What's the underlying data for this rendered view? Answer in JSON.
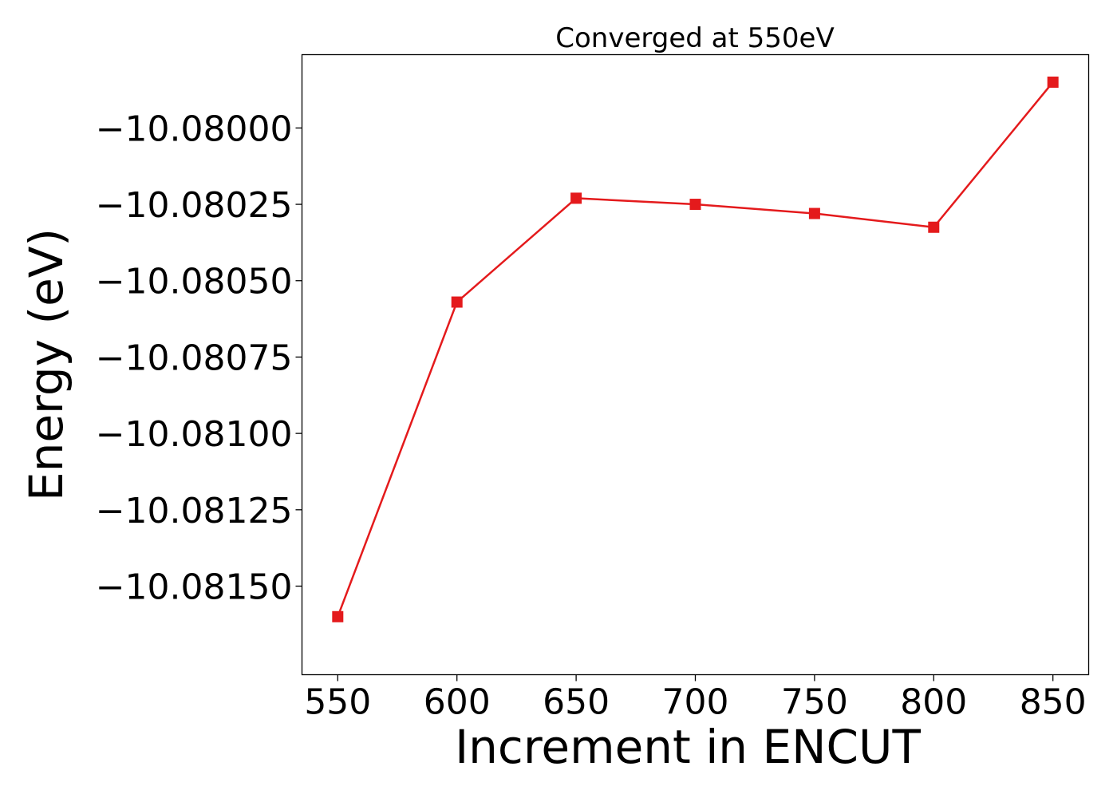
{
  "chart_data": {
    "type": "line",
    "title": "Converged at 550eV",
    "xlabel": "Increment in ENCUT",
    "ylabel": "Energy (eV)",
    "x": [
      550,
      600,
      650,
      700,
      750,
      800,
      850
    ],
    "series": [
      {
        "values": [
          -10.0816,
          -10.08057,
          -10.08023,
          -10.08025,
          -10.08028,
          -10.080325,
          -10.07985
        ]
      }
    ],
    "xticks": [
      550,
      600,
      650,
      700,
      750,
      800,
      850
    ],
    "xtick_labels": [
      "550",
      "600",
      "650",
      "700",
      "750",
      "800",
      "850"
    ],
    "yticks": [
      -10.08,
      -10.08025,
      -10.0805,
      -10.08075,
      -10.081,
      -10.08125,
      -10.0815
    ],
    "ytick_labels": [
      "−10.08000",
      "−10.08025",
      "−10.08050",
      "−10.08075",
      "−10.08100",
      "−10.08125",
      "−10.08150"
    ],
    "xlim": [
      535,
      865
    ],
    "ylim": [
      -10.08179,
      -10.07976
    ],
    "grid": false,
    "line_color": "#e41a1c",
    "marker": "square"
  }
}
